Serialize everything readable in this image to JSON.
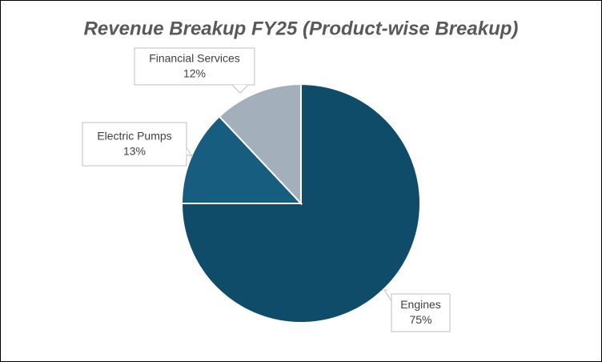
{
  "chart_data": {
    "type": "pie",
    "title": "Revenue Breakup FY25 (Product-wise Breakup)",
    "categories": [
      "Engines",
      "Electric Pumps",
      "Financial Services"
    ],
    "values": [
      75,
      13,
      12
    ],
    "value_labels": [
      "75%",
      "13%",
      "12%"
    ],
    "colors": [
      "#0f4c6a",
      "#165d80",
      "#a3afba"
    ]
  }
}
